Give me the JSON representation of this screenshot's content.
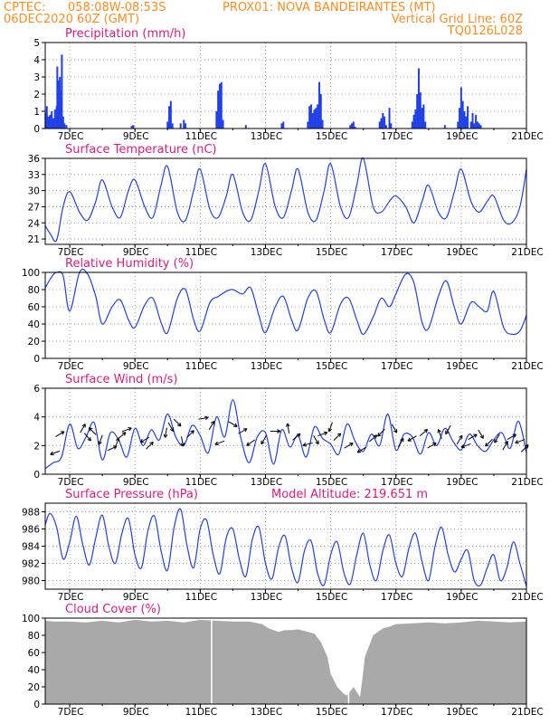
{
  "header": {
    "line1_left": "CPTEC:",
    "coords": "058:08W-08:53S",
    "station": "PROX01: NOVA BANDEIRANTES (MT)",
    "date": "06DEC2020 60Z (GMT)",
    "grid_note": "Vertical Grid Line: 60Z",
    "code": "TQ0126L028"
  },
  "colors": {
    "header": "#ff8c1a",
    "panel_title": "#e0197d",
    "series": "#2040e8",
    "cloud": "#a9a9a9",
    "wind_arrow": "#000000"
  },
  "chart_data": [
    {
      "id": "precipitation",
      "type": "bar",
      "title": "Precipitation (mm/h)",
      "x_ticks": [
        "7DEC",
        "9DEC",
        "11DEC",
        "13DEC",
        "15DEC",
        "17DEC",
        "19DEC",
        "21DEC"
      ],
      "x_range_days": [
        6.25,
        21.0
      ],
      "ylim": [
        0,
        5
      ],
      "y_ticks": [
        0,
        1,
        2,
        3,
        4,
        5
      ],
      "grid": true,
      "x": [
        6.26,
        6.3,
        6.35,
        6.4,
        6.45,
        6.5,
        6.55,
        6.6,
        6.62,
        6.65,
        6.68,
        6.7,
        6.73,
        6.76,
        6.8,
        6.84,
        6.9,
        8.9,
        8.95,
        10.0,
        10.05,
        10.1,
        10.15,
        10.4,
        10.5,
        10.55,
        11.5,
        11.55,
        11.6,
        11.65,
        11.7,
        12.4,
        13.5,
        13.55,
        14.3,
        14.35,
        14.4,
        14.45,
        14.5,
        14.55,
        14.6,
        14.65,
        14.7,
        14.75,
        15.6,
        15.65,
        15.7,
        15.75,
        16.5,
        16.55,
        16.6,
        16.65,
        16.7,
        16.8,
        16.85,
        17.5,
        17.55,
        17.6,
        17.65,
        17.7,
        17.75,
        17.8,
        17.85,
        17.9,
        18.5,
        18.9,
        18.95,
        19.0,
        19.05,
        19.1,
        19.15,
        19.2,
        19.3,
        19.35,
        19.4,
        19.45,
        19.5,
        19.55,
        19.6
      ],
      "values": [
        0.9,
        1.3,
        0.7,
        0.8,
        1.0,
        0.6,
        1.1,
        1.3,
        3.6,
        2.8,
        1.2,
        3.0,
        2.2,
        4.3,
        0.7,
        0.3,
        0.2,
        0.15,
        0.2,
        0.4,
        1.3,
        1.6,
        0.3,
        0.3,
        0.5,
        0.3,
        1.0,
        2.2,
        2.6,
        2.7,
        0.5,
        0.2,
        0.3,
        0.4,
        0.4,
        1.3,
        1.4,
        0.9,
        1.1,
        1.2,
        1.4,
        2.7,
        2.0,
        0.5,
        0.2,
        0.3,
        0.4,
        0.1,
        0.4,
        0.6,
        0.9,
        0.7,
        0.2,
        1.2,
        0.3,
        0.4,
        0.8,
        1.1,
        2.0,
        3.5,
        2.1,
        1.2,
        1.4,
        0.4,
        0.2,
        0.4,
        1.2,
        2.4,
        1.6,
        1.0,
        0.7,
        1.3,
        0.4,
        0.9,
        0.3,
        0.8,
        0.4,
        0.3,
        0.2
      ]
    },
    {
      "id": "surface_temperature",
      "type": "line",
      "title": "Surface Temperature (nC)",
      "x_ticks": [
        "7DEC",
        "9DEC",
        "11DEC",
        "13DEC",
        "15DEC",
        "17DEC",
        "19DEC",
        "21DEC"
      ],
      "x_range_days": [
        6.25,
        21.0
      ],
      "ylim": [
        20,
        36
      ],
      "y_ticks": [
        21,
        24,
        27,
        30,
        33,
        36
      ],
      "grid": true,
      "x": [
        6.25,
        6.4,
        6.6,
        6.8,
        7.0,
        7.3,
        7.55,
        7.8,
        8.0,
        8.3,
        8.55,
        8.8,
        9.0,
        9.3,
        9.55,
        9.8,
        10.0,
        10.3,
        10.55,
        10.8,
        11.0,
        11.3,
        11.55,
        11.8,
        12.0,
        12.3,
        12.55,
        12.8,
        13.0,
        13.3,
        13.55,
        13.8,
        14.0,
        14.3,
        14.55,
        14.8,
        15.0,
        15.3,
        15.55,
        15.8,
        16.0,
        16.3,
        16.55,
        16.8,
        17.0,
        17.3,
        17.55,
        17.8,
        18.0,
        18.3,
        18.55,
        18.8,
        19.0,
        19.3,
        19.55,
        19.8,
        20.0,
        20.3,
        20.55,
        20.8,
        21.0
      ],
      "values": [
        23.5,
        22,
        20.8,
        27,
        29.8,
        26,
        24.5,
        28,
        32,
        27,
        25,
        30,
        32,
        27,
        25,
        31,
        34.5,
        26,
        24.5,
        30,
        34,
        26.5,
        25,
        29,
        33,
        26,
        24.5,
        30,
        35,
        27,
        25,
        30,
        34,
        26,
        24.5,
        30,
        35,
        27,
        25,
        31,
        36,
        27,
        26,
        28,
        29,
        27,
        24,
        28,
        31,
        26,
        25,
        30,
        34,
        28,
        26,
        28,
        29,
        24.5,
        24,
        27,
        34
      ]
    },
    {
      "id": "relative_humidity",
      "type": "line",
      "title": "Relative Humidity (%)",
      "x_ticks": [
        "7DEC",
        "9DEC",
        "11DEC",
        "13DEC",
        "15DEC",
        "17DEC",
        "19DEC",
        "21DEC"
      ],
      "x_range_days": [
        6.25,
        21.0
      ],
      "ylim": [
        0,
        100
      ],
      "y_ticks": [
        0,
        20,
        40,
        60,
        80,
        100
      ],
      "grid": true,
      "x": [
        6.25,
        6.45,
        6.6,
        6.8,
        7.0,
        7.3,
        7.55,
        7.8,
        8.0,
        8.3,
        8.55,
        8.8,
        9.0,
        9.3,
        9.55,
        9.8,
        10.0,
        10.3,
        10.55,
        10.8,
        11.0,
        11.3,
        11.55,
        11.8,
        12.0,
        12.3,
        12.55,
        12.8,
        13.0,
        13.3,
        13.55,
        13.8,
        14.0,
        14.3,
        14.55,
        14.8,
        15.0,
        15.3,
        15.55,
        15.8,
        16.0,
        16.3,
        16.55,
        16.8,
        17.0,
        17.3,
        17.55,
        17.8,
        18.0,
        18.3,
        18.55,
        18.8,
        19.0,
        19.3,
        19.55,
        19.8,
        20.0,
        20.3,
        20.55,
        20.8,
        21.0
      ],
      "values": [
        82,
        95,
        100,
        96,
        55,
        100,
        98,
        72,
        40,
        60,
        68,
        45,
        36,
        62,
        70,
        42,
        30,
        70,
        80,
        45,
        32,
        65,
        72,
        78,
        80,
        75,
        82,
        50,
        30,
        60,
        72,
        45,
        33,
        70,
        78,
        45,
        30,
        63,
        70,
        45,
        28,
        48,
        70,
        60,
        75,
        98,
        88,
        42,
        35,
        72,
        90,
        58,
        40,
        65,
        60,
        55,
        78,
        36,
        28,
        32,
        50
      ]
    },
    {
      "id": "surface_wind",
      "type": "line",
      "title": "Surface Wind (m/s)",
      "x_ticks": [
        "7DEC",
        "9DEC",
        "11DEC",
        "13DEC",
        "15DEC",
        "17DEC",
        "19DEC",
        "21DEC"
      ],
      "x_range_days": [
        6.25,
        21.0
      ],
      "ylim": [
        0,
        6
      ],
      "y_ticks": [
        0,
        2,
        4,
        6
      ],
      "grid": true,
      "x": [
        6.25,
        6.5,
        6.75,
        7.0,
        7.25,
        7.5,
        7.75,
        8.0,
        8.25,
        8.5,
        8.75,
        9.0,
        9.25,
        9.5,
        9.75,
        10.0,
        10.25,
        10.5,
        10.75,
        11.0,
        11.25,
        11.5,
        11.75,
        12.0,
        12.25,
        12.5,
        12.75,
        13.0,
        13.25,
        13.5,
        13.75,
        14.0,
        14.25,
        14.5,
        14.75,
        15.0,
        15.25,
        15.5,
        15.75,
        16.0,
        16.25,
        16.5,
        16.75,
        17.0,
        17.25,
        17.5,
        17.75,
        18.0,
        18.25,
        18.5,
        18.75,
        19.0,
        19.25,
        19.5,
        19.75,
        20.0,
        20.25,
        20.5,
        20.75,
        21.0
      ],
      "values": [
        0.4,
        0.8,
        1.2,
        3.5,
        1.8,
        2.6,
        3.6,
        1.0,
        2.9,
        2.4,
        1.2,
        3.2,
        2.0,
        3.1,
        2.4,
        4.2,
        2.6,
        2.0,
        3.4,
        2.7,
        1.5,
        4.0,
        2.6,
        5.2,
        2.5,
        0.8,
        2.6,
        2.9,
        0.7,
        3.1,
        1.9,
        2.7,
        1.2,
        3.3,
        2.5,
        2.1,
        1.4,
        3.5,
        2.3,
        1.6,
        2.8,
        2.0,
        4.2,
        1.7,
        2.8,
        2.6,
        1.4,
        2.9,
        2.0,
        3.2,
        2.3,
        1.7,
        2.8,
        2.0,
        1.6,
        2.4,
        2.9,
        1.8,
        3.7,
        1.5
      ],
      "arrows_x": [
        6.55,
        6.7,
        7.4,
        7.55,
        7.7,
        7.95,
        8.3,
        8.45,
        8.6,
        8.75,
        9.3,
        9.45,
        9.95,
        10.1,
        10.3,
        10.45,
        10.7,
        11.1,
        11.35,
        11.6,
        12.0,
        12.3,
        12.55,
        12.95,
        13.3,
        13.7,
        13.95,
        14.3,
        14.55,
        14.75,
        15.0,
        15.2,
        15.55,
        15.95,
        16.3,
        16.55,
        16.95,
        17.15,
        17.5,
        17.85,
        18.1,
        18.35,
        18.6,
        18.95,
        19.15,
        19.35,
        19.6,
        19.85,
        20.1,
        20.35,
        20.55,
        20.8,
        20.95
      ],
      "arrows_y": [
        1.5,
        2.8,
        3.2,
        2.6,
        3.0,
        2.4,
        1.8,
        2.2,
        2.7,
        3.1,
        2.4,
        2.0,
        2.9,
        3.3,
        3.6,
        2.3,
        2.8,
        3.9,
        3.4,
        2.2,
        3.5,
        3.0,
        2.2,
        2.4,
        3.0,
        3.2,
        2.6,
        2.1,
        2.4,
        2.8,
        3.3,
        2.6,
        2.0,
        1.7,
        2.5,
        2.9,
        3.2,
        2.2,
        2.5,
        2.9,
        2.0,
        2.8,
        3.1,
        2.4,
        2.0,
        2.6,
        2.8,
        2.2,
        2.5,
        2.0,
        2.6,
        2.3,
        1.8
      ],
      "arrows_dir": [
        200,
        30,
        60,
        310,
        135,
        250,
        25,
        70,
        40,
        20,
        210,
        45,
        260,
        300,
        315,
        280,
        45,
        10,
        60,
        200,
        330,
        30,
        215,
        240,
        0,
        100,
        40,
        195,
        300,
        20,
        250,
        45,
        30,
        210,
        40,
        225,
        300,
        60,
        210,
        40,
        30,
        110,
        240,
        60,
        200,
        30,
        300,
        225,
        240,
        60,
        30,
        200,
        45
      ]
    },
    {
      "id": "surface_pressure",
      "type": "line",
      "title": "Surface Pressure (hPa)",
      "annotation": "Model Altitude: 219.651 m",
      "x_ticks": [
        "7DEC",
        "9DEC",
        "11DEC",
        "13DEC",
        "15DEC",
        "17DEC",
        "19DEC",
        "21DEC"
      ],
      "x_range_days": [
        6.25,
        21.0
      ],
      "ylim": [
        979,
        989
      ],
      "y_ticks": [
        980,
        982,
        984,
        986,
        988
      ],
      "grid": true,
      "x": [
        6.25,
        6.4,
        6.6,
        6.8,
        7.0,
        7.2,
        7.4,
        7.6,
        7.8,
        8.0,
        8.2,
        8.4,
        8.6,
        8.8,
        9.0,
        9.2,
        9.4,
        9.6,
        9.8,
        10.0,
        10.2,
        10.4,
        10.6,
        10.8,
        11.0,
        11.2,
        11.4,
        11.6,
        11.8,
        12.0,
        12.2,
        12.4,
        12.6,
        12.8,
        13.0,
        13.2,
        13.4,
        13.6,
        13.8,
        14.0,
        14.2,
        14.4,
        14.6,
        14.8,
        15.0,
        15.2,
        15.4,
        15.6,
        15.8,
        16.0,
        16.2,
        16.4,
        16.6,
        16.8,
        17.0,
        17.2,
        17.4,
        17.6,
        17.8,
        18.0,
        18.2,
        18.4,
        18.6,
        18.8,
        19.0,
        19.2,
        19.4,
        19.6,
        19.8,
        20.0,
        20.2,
        20.4,
        20.6,
        20.8,
        21.0
      ],
      "values": [
        986.5,
        987.8,
        986.2,
        982.5,
        984.5,
        987.5,
        984.2,
        981.8,
        985.0,
        987.6,
        984.0,
        982.0,
        985.5,
        987.2,
        983.0,
        981.5,
        985.8,
        987.5,
        983.5,
        981.2,
        986.2,
        988.3,
        984.0,
        981.5,
        986.0,
        987.0,
        983.0,
        980.8,
        985.0,
        986.0,
        982.5,
        980.5,
        984.8,
        986.2,
        982.0,
        980.2,
        983.8,
        985.2,
        981.5,
        979.8,
        983.5,
        984.6,
        980.8,
        979.5,
        983.0,
        984.5,
        981.0,
        979.6,
        983.0,
        985.5,
        981.8,
        980.0,
        983.5,
        985.3,
        982.0,
        980.5,
        983.8,
        985.5,
        982.2,
        980.0,
        984.0,
        986.2,
        983.0,
        981.0,
        982.5,
        983.5,
        980.0,
        979.5,
        981.5,
        983.0,
        980.0,
        981.5,
        984.5,
        982.0,
        979.3
      ]
    },
    {
      "id": "cloud_cover",
      "type": "area",
      "title": "Cloud Cover (%)",
      "x_ticks": [
        "7DEC",
        "9DEC",
        "11DEC",
        "13DEC",
        "15DEC",
        "17DEC",
        "19DEC",
        "21DEC"
      ],
      "x_range_days": [
        6.25,
        21.0
      ],
      "ylim": [
        0,
        100
      ],
      "y_ticks": [
        0,
        20,
        40,
        60,
        80,
        100
      ],
      "grid": false,
      "x": [
        6.25,
        6.5,
        7.0,
        7.5,
        8.0,
        8.5,
        9.0,
        9.5,
        10.0,
        10.5,
        11.0,
        11.5,
        12.0,
        12.5,
        12.9,
        13.1,
        13.4,
        13.6,
        13.8,
        14.0,
        14.3,
        14.5,
        14.7,
        14.9,
        15.0,
        15.2,
        15.4,
        15.5,
        15.7,
        15.9,
        16.05,
        16.3,
        16.6,
        16.8,
        17.0,
        17.5,
        18.0,
        18.5,
        19.0,
        19.5,
        20.0,
        20.5,
        21.0
      ],
      "values": [
        97,
        96,
        96,
        95,
        97,
        95,
        98,
        96,
        97,
        95,
        98,
        97,
        96,
        96,
        93,
        88,
        84,
        86,
        86,
        87,
        84,
        82,
        72,
        55,
        35,
        20,
        12,
        10,
        20,
        8,
        55,
        80,
        88,
        90,
        93,
        94,
        95,
        94,
        95,
        97,
        96,
        95,
        96
      ]
    }
  ]
}
